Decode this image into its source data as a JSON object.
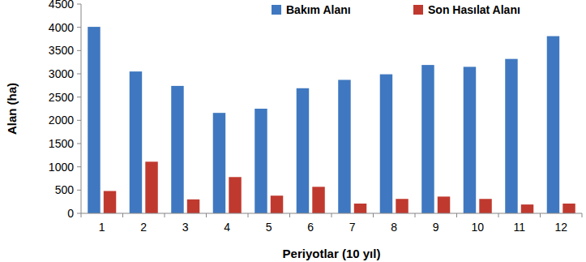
{
  "chart_data": {
    "type": "bar",
    "y_label": "Alan (ha)",
    "x_label": "Periyotlar (10 yıl)",
    "categories": [
      "1",
      "2",
      "3",
      "4",
      "5",
      "6",
      "7",
      "8",
      "9",
      "10",
      "11",
      "12"
    ],
    "series": [
      {
        "name": "Bakım Alanı",
        "color": "#3f78c0",
        "values": [
          4010,
          3050,
          2740,
          2160,
          2250,
          2690,
          2870,
          2990,
          3190,
          3150,
          3320,
          3810
        ]
      },
      {
        "name": "Son Hasılat Alanı",
        "color": "#c0392f",
        "values": [
          480,
          1110,
          300,
          780,
          380,
          570,
          210,
          310,
          360,
          310,
          190,
          210
        ]
      }
    ],
    "ylim": [
      0,
      4500
    ],
    "yticks": [
      0,
      500,
      1000,
      1500,
      2000,
      2500,
      3000,
      3500,
      4000,
      4500
    ],
    "grid": false,
    "legend": "top"
  }
}
